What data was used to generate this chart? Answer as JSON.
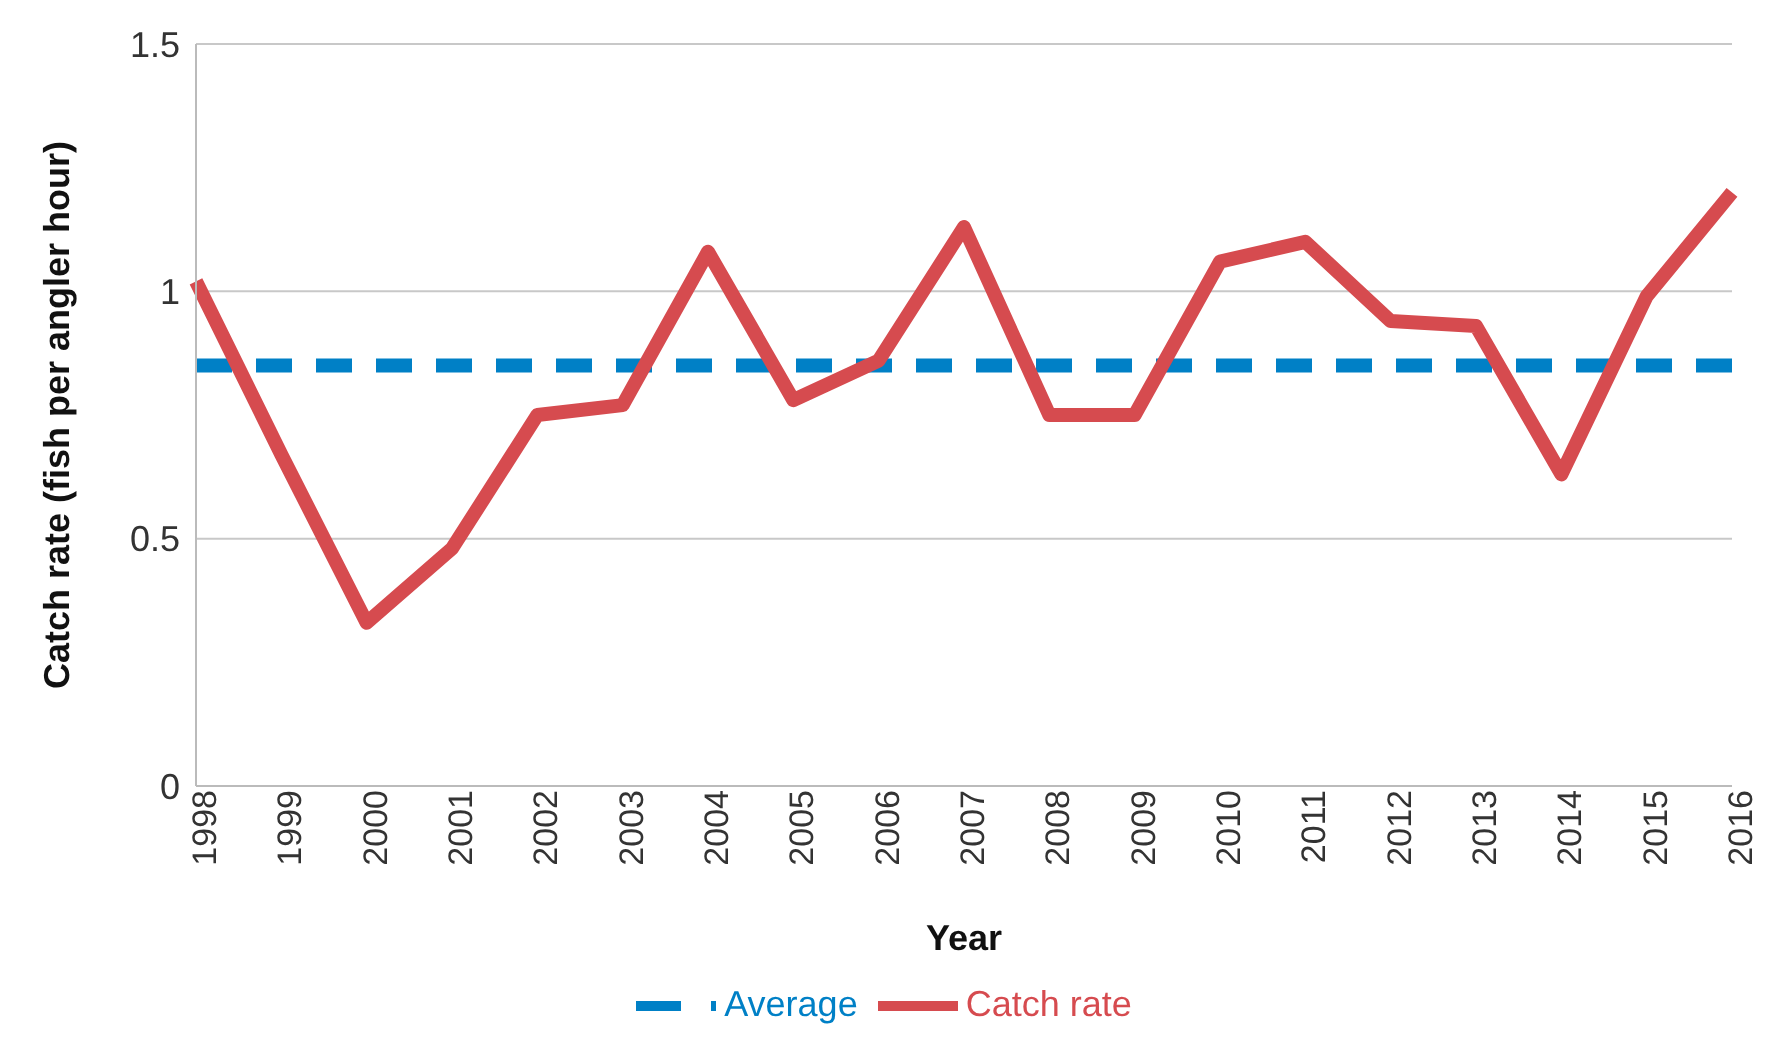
{
  "chart_data": {
    "type": "line",
    "xlabel": "Year",
    "ylabel": "Catch rate (fish per angler hour)",
    "categories": [
      "1998",
      "1999",
      "2000",
      "2001",
      "2002",
      "2003",
      "2004",
      "2005",
      "2006",
      "2007",
      "2008",
      "2009",
      "2010",
      "2011",
      "2012",
      "2013",
      "2014",
      "2015",
      "2016"
    ],
    "series": [
      {
        "name": "Average",
        "color": "#0080c6",
        "line_style": "dashed",
        "values": [
          0.85,
          0.85,
          0.85,
          0.85,
          0.85,
          0.85,
          0.85,
          0.85,
          0.85,
          0.85,
          0.85,
          0.85,
          0.85,
          0.85,
          0.85,
          0.85,
          0.85,
          0.85,
          0.85
        ]
      },
      {
        "name": "Catch rate",
        "color": "#d64b4f",
        "line_style": "solid",
        "values": [
          1.02,
          0.67,
          0.33,
          0.48,
          0.75,
          0.77,
          1.08,
          0.78,
          0.86,
          1.13,
          0.75,
          0.75,
          1.06,
          1.1,
          0.94,
          0.93,
          0.63,
          0.99,
          1.2
        ]
      }
    ],
    "ylim": [
      0,
      1.5
    ],
    "yticks": [
      0,
      0.5,
      1,
      1.5
    ],
    "grid": "y",
    "legend": "bottom",
    "marker": "none"
  }
}
